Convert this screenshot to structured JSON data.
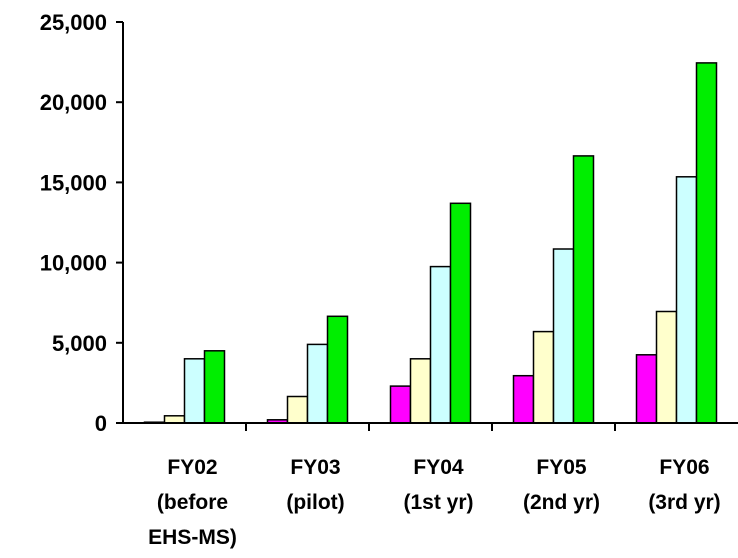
{
  "chart_data": {
    "type": "bar",
    "categories": [
      [
        "FY02",
        "(before",
        "EHS-MS)"
      ],
      [
        "FY03",
        "(pilot)"
      ],
      [
        "FY04",
        "(1st yr)"
      ],
      [
        "FY05",
        "(2nd yr)"
      ],
      [
        "FY06",
        "(3rd yr)"
      ]
    ],
    "series": [
      {
        "color": "#ff00ff",
        "values": [
          50,
          200,
          2300,
          2950,
          4250
        ]
      },
      {
        "color": "#ffffcc",
        "values": [
          450,
          1650,
          4000,
          5700,
          6950
        ]
      },
      {
        "color": "#ccffff",
        "values": [
          4000,
          4900,
          9750,
          10850,
          15350
        ]
      },
      {
        "color": "#00ee00",
        "values": [
          4500,
          6650,
          13700,
          16650,
          22450
        ]
      }
    ],
    "yticks": [
      "0",
      "5,000",
      "10,000",
      "15,000",
      "20,000",
      "25,000"
    ],
    "ylim": [
      0,
      25000
    ],
    "grid": false,
    "legend": "none"
  }
}
